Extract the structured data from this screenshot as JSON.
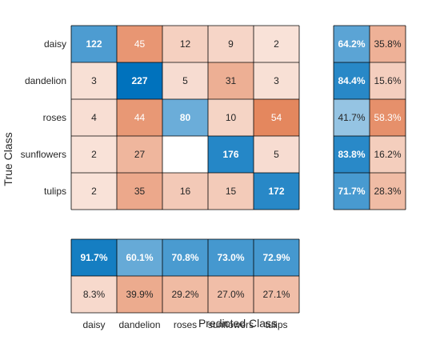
{
  "chart_data": {
    "type": "heatmap",
    "title": "",
    "xlabel": "Predicted Class",
    "ylabel": "True Class",
    "classes": [
      "daisy",
      "dandelion",
      "roses",
      "sunflowers",
      "tulips"
    ],
    "matrix": [
      [
        122,
        45,
        12,
        9,
        2
      ],
      [
        3,
        227,
        5,
        31,
        3
      ],
      [
        4,
        44,
        80,
        10,
        54
      ],
      [
        2,
        27,
        null,
        176,
        5
      ],
      [
        2,
        35,
        16,
        15,
        172
      ]
    ],
    "row_summary": [
      [
        "64.2%",
        "35.8%"
      ],
      [
        "84.4%",
        "15.6%"
      ],
      [
        "41.7%",
        "58.3%"
      ],
      [
        "83.8%",
        "16.2%"
      ],
      [
        "71.7%",
        "28.3%"
      ]
    ],
    "column_summary": [
      [
        "91.7%",
        "60.1%",
        "70.8%",
        "73.0%",
        "72.9%"
      ],
      [
        "8.3%",
        "39.9%",
        "29.2%",
        "27.0%",
        "27.1%"
      ]
    ],
    "colors": {
      "correct": "#0072bd",
      "incorrect": "#d95319",
      "background": "#ffffff",
      "grid": "#000000"
    }
  }
}
